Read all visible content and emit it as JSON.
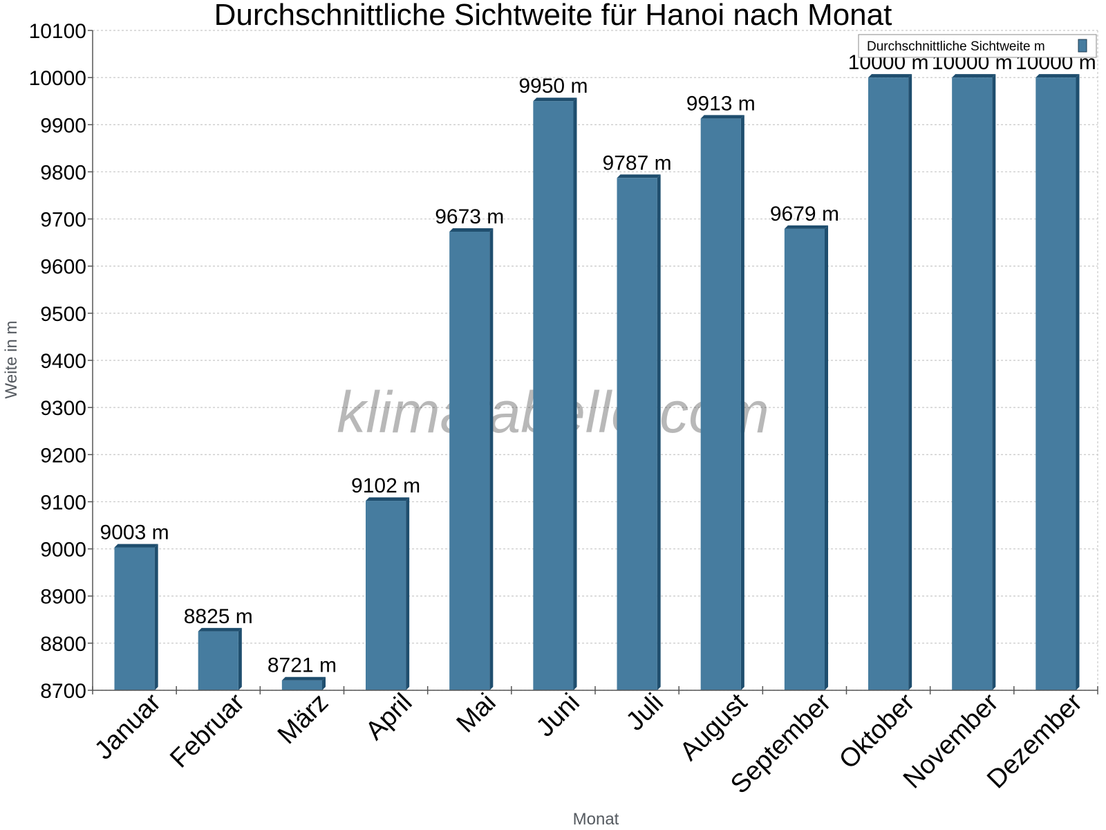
{
  "chart_data": {
    "type": "bar",
    "title": "Durchschnittliche Sichtweite für Hanoi nach Monat",
    "xlabel": "Monat",
    "ylabel": "Weite in m",
    "categories": [
      "Januar",
      "Februar",
      "März",
      "April",
      "Mai",
      "Juni",
      "Juli",
      "August",
      "September",
      "Oktober",
      "November",
      "Dezember"
    ],
    "series": [
      {
        "name": "Durchschnittliche Sichtweite m",
        "values": [
          9003,
          8825,
          8721,
          9102,
          9673,
          9950,
          9787,
          9913,
          9679,
          10000,
          10000,
          10000
        ],
        "labels": [
          "9003 m",
          "8825 m",
          "8721 m",
          "9102 m",
          "9673 m",
          "9950 m",
          "9787 m",
          "9913 m",
          "9679 m",
          "10000 m",
          "10000 m",
          "10000 m"
        ]
      }
    ],
    "ylim": [
      8700,
      10100
    ],
    "yticks": [
      "8700",
      "8800",
      "8900",
      "9000",
      "9100",
      "9200",
      "9300",
      "9400",
      "9500",
      "9600",
      "9700",
      "9800",
      "9900",
      "10000",
      "10100"
    ],
    "grid": true,
    "legend_position": "top-right",
    "watermark": "klimatabelle.com",
    "colors": {
      "bar": "#467c9f",
      "bar_dark": "#1f4e6e",
      "grid": "#c8c8c8",
      "axis": "#555555"
    }
  }
}
